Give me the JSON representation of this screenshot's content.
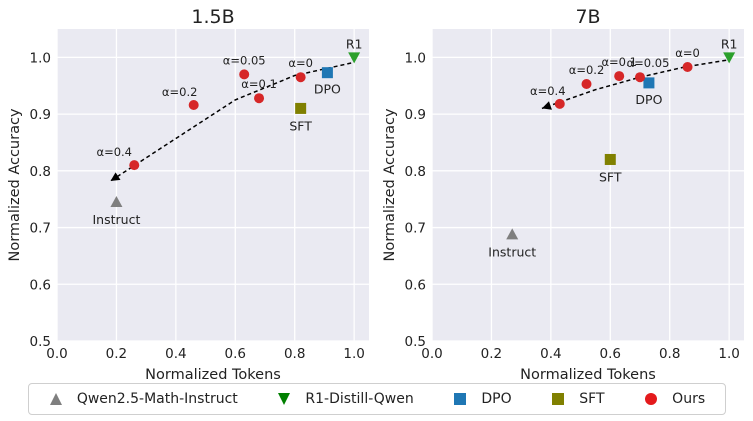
{
  "chart_data": [
    {
      "type": "scatter",
      "title": "1.5B",
      "xlabel": "Normalized Tokens",
      "ylabel": "Normalized Accuracy",
      "xlim": [
        0.0,
        1.05
      ],
      "ylim": [
        0.5,
        1.05
      ],
      "xticks": [
        "0.0",
        "0.2",
        "0.4",
        "0.6",
        "0.8",
        "1.0"
      ],
      "yticks": [
        "0.5",
        "0.6",
        "0.7",
        "0.8",
        "0.9",
        "1.0"
      ],
      "grid": true,
      "series": [
        {
          "name": "Qwen2.5-Math-Instruct",
          "marker": "triangle-up",
          "color": "#7f7f7f",
          "points": [
            {
              "x": 0.2,
              "y": 0.745,
              "label": "Instruct"
            }
          ]
        },
        {
          "name": "R1-Distill-Qwen",
          "marker": "triangle-down",
          "color": "#2ca02c",
          "points": [
            {
              "x": 1.0,
              "y": 1.0,
              "label": "R1"
            }
          ]
        },
        {
          "name": "DPO",
          "marker": "square",
          "color": "#1f77b4",
          "points": [
            {
              "x": 0.91,
              "y": 0.973,
              "label": "DPO"
            }
          ]
        },
        {
          "name": "SFT",
          "marker": "square",
          "color": "#808000",
          "points": [
            {
              "x": 0.82,
              "y": 0.91,
              "label": "SFT"
            }
          ]
        },
        {
          "name": "Ours",
          "marker": "circle",
          "color": "#d62728",
          "points": [
            {
              "x": 0.26,
              "y": 0.81,
              "label": "α=0.4"
            },
            {
              "x": 0.46,
              "y": 0.916,
              "label": "α=0.2"
            },
            {
              "x": 0.63,
              "y": 0.97,
              "label": "α=0.05"
            },
            {
              "x": 0.68,
              "y": 0.928,
              "label": "α=0.1"
            },
            {
              "x": 0.82,
              "y": 0.965,
              "label": "α=0"
            }
          ]
        }
      ],
      "trend": {
        "style": "dashed",
        "points": [
          [
            0.99,
            0.99
          ],
          [
            0.8,
            0.968
          ],
          [
            0.6,
            0.925
          ],
          [
            0.4,
            0.857
          ],
          [
            0.18,
            0.782
          ]
        ]
      }
    },
    {
      "type": "scatter",
      "title": "7B",
      "xlabel": "Normalized Tokens",
      "ylabel": "Normalized Accuracy",
      "xlim": [
        0.0,
        1.05
      ],
      "ylim": [
        0.5,
        1.05
      ],
      "xticks": [
        "0.0",
        "0.2",
        "0.4",
        "0.6",
        "0.8",
        "1.0"
      ],
      "yticks": [
        "0.5",
        "0.6",
        "0.7",
        "0.8",
        "0.9",
        "1.0"
      ],
      "grid": true,
      "series": [
        {
          "name": "Qwen2.5-Math-Instruct",
          "marker": "triangle-up",
          "color": "#7f7f7f",
          "points": [
            {
              "x": 0.27,
              "y": 0.688,
              "label": "Instruct"
            }
          ]
        },
        {
          "name": "R1-Distill-Qwen",
          "marker": "triangle-down",
          "color": "#2ca02c",
          "points": [
            {
              "x": 1.0,
              "y": 1.0,
              "label": "R1"
            }
          ]
        },
        {
          "name": "DPO",
          "marker": "square",
          "color": "#1f77b4",
          "points": [
            {
              "x": 0.73,
              "y": 0.955,
              "label": "DPO"
            }
          ]
        },
        {
          "name": "SFT",
          "marker": "square",
          "color": "#808000",
          "points": [
            {
              "x": 0.6,
              "y": 0.82,
              "label": "SFT"
            }
          ]
        },
        {
          "name": "Ours",
          "marker": "circle",
          "color": "#d62728",
          "points": [
            {
              "x": 0.43,
              "y": 0.918,
              "label": "α=0.4"
            },
            {
              "x": 0.52,
              "y": 0.953,
              "label": "α=0.2"
            },
            {
              "x": 0.63,
              "y": 0.967,
              "label": "α=0.1"
            },
            {
              "x": 0.7,
              "y": 0.965,
              "label": "α=0.05"
            },
            {
              "x": 0.86,
              "y": 0.983,
              "label": "α=0"
            }
          ]
        }
      ],
      "trend": {
        "style": "dashed",
        "points": [
          [
            0.99,
            0.995
          ],
          [
            0.85,
            0.983
          ],
          [
            0.7,
            0.965
          ],
          [
            0.55,
            0.943
          ],
          [
            0.37,
            0.91
          ]
        ]
      }
    }
  ],
  "legend": {
    "placement": "bottom",
    "items": [
      {
        "label": "Qwen2.5-Math-Instruct",
        "marker": "triangle-up",
        "color": "#7f7f7f"
      },
      {
        "label": "R1-Distill-Qwen",
        "marker": "triangle-down",
        "color": "#008000"
      },
      {
        "label": "DPO",
        "marker": "square",
        "color": "#1f77b4"
      },
      {
        "label": "SFT",
        "marker": "square",
        "color": "#808000"
      },
      {
        "label": "Ours",
        "marker": "circle",
        "color": "#e41a1c"
      }
    ]
  }
}
